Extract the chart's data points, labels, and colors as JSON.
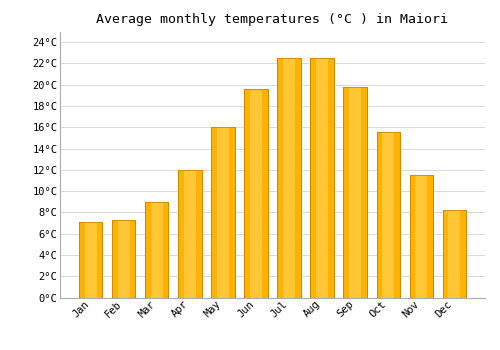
{
  "title": "Average monthly temperatures (°C ) in Maiori",
  "months": [
    "Jan",
    "Feb",
    "Mar",
    "Apr",
    "May",
    "Jun",
    "Jul",
    "Aug",
    "Sep",
    "Oct",
    "Nov",
    "Dec"
  ],
  "temperatures": [
    7.1,
    7.3,
    9.0,
    12.0,
    16.0,
    19.6,
    22.5,
    22.5,
    19.8,
    15.6,
    11.5,
    8.2
  ],
  "bar_color_main": "#FFB300",
  "bar_color_light": "#FFCF4D",
  "bar_color_dark": "#CC8800",
  "ylim": [
    0,
    25
  ],
  "yticks": [
    0,
    2,
    4,
    6,
    8,
    10,
    12,
    14,
    16,
    18,
    20,
    22,
    24
  ],
  "background_color": "#ffffff",
  "grid_color": "#d8d8d8",
  "title_fontsize": 9.5,
  "tick_fontsize": 7.5,
  "font_family": "monospace"
}
